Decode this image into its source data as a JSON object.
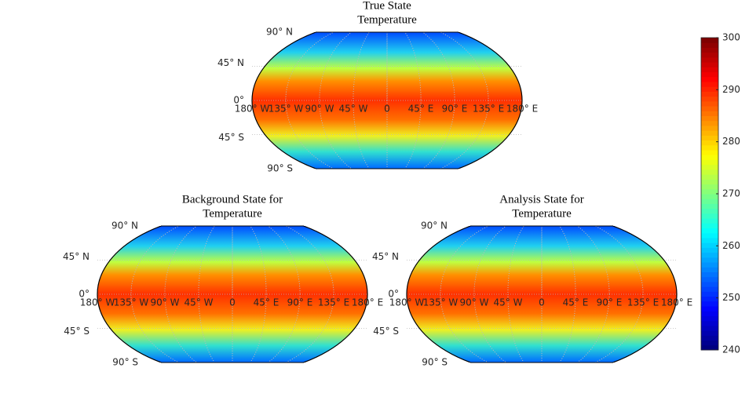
{
  "maps": [
    {
      "title": [
        "True State",
        "Temperature"
      ]
    },
    {
      "title": [
        "Background State for",
        "Temperature"
      ]
    },
    {
      "title": [
        "Analysis State for",
        "Temperature"
      ]
    }
  ],
  "graticule": {
    "lat_labels": [
      "90° N",
      "45° N",
      "0°",
      "45° S",
      "90° S"
    ],
    "lon_labels": [
      "180° W",
      "135° W",
      "90° W",
      "45° W",
      "0",
      "45° E",
      "90° E",
      "135° E",
      "180° E"
    ]
  },
  "colorbar": {
    "colormap": "jet",
    "lim": [
      240,
      300
    ],
    "ticks": [
      240,
      250,
      260,
      270,
      280,
      290,
      300
    ]
  }
}
